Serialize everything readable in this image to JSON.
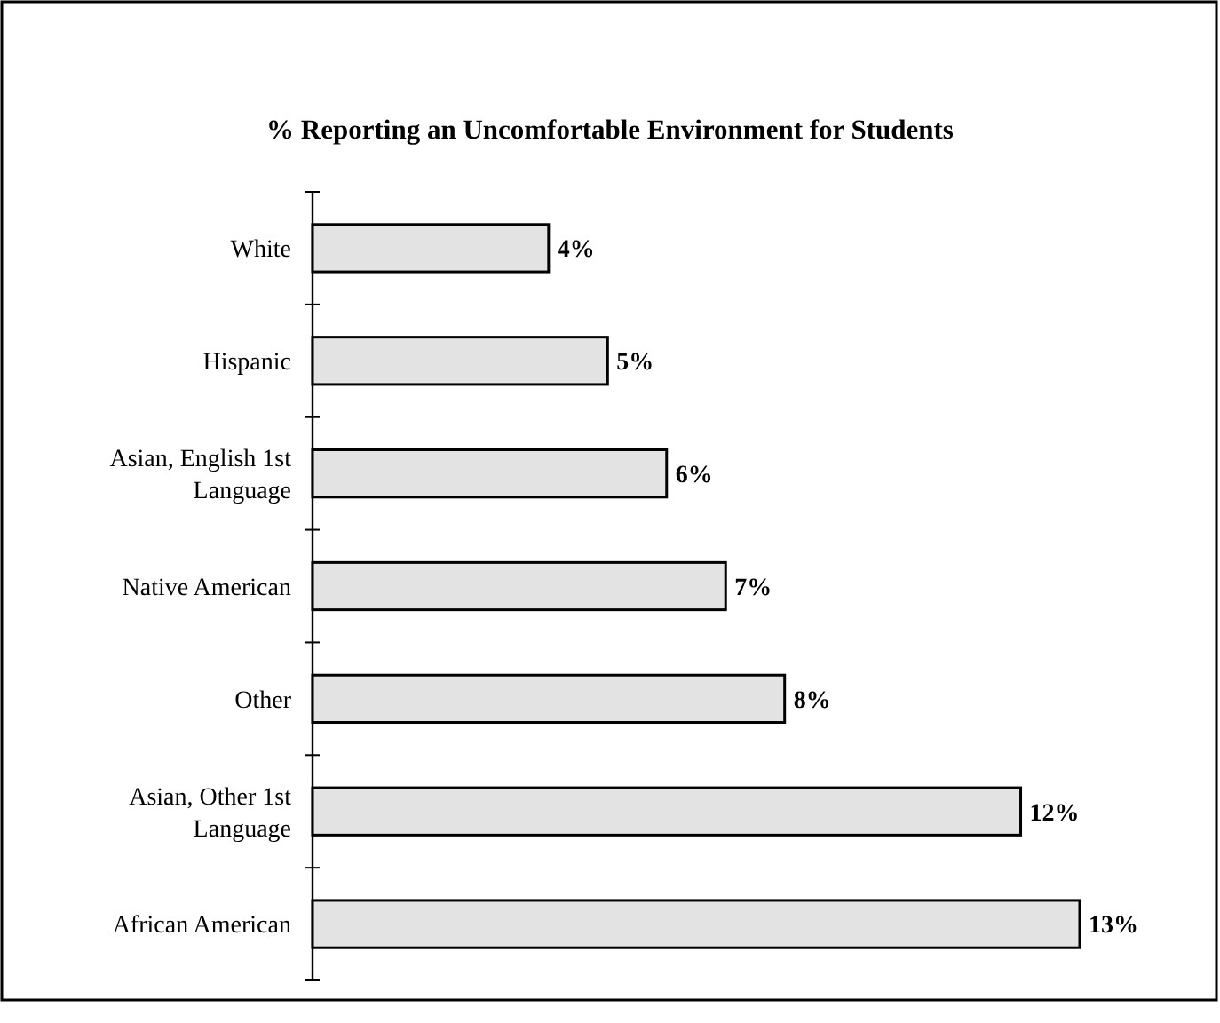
{
  "chart_data": {
    "type": "bar",
    "orientation": "horizontal",
    "title": "% Reporting an Uncomfortable Environment for Students",
    "categories": [
      "White",
      "Hispanic",
      "Asian, English 1st Language",
      "Native American",
      "Other",
      "Asian, Other 1st Language",
      "African American"
    ],
    "values": [
      4,
      5,
      6,
      7,
      8,
      12,
      13
    ],
    "value_labels": [
      "4%",
      "5%",
      "6%",
      "7%",
      "8%",
      "12%",
      "13%"
    ],
    "color": "#e3e3e3"
  }
}
